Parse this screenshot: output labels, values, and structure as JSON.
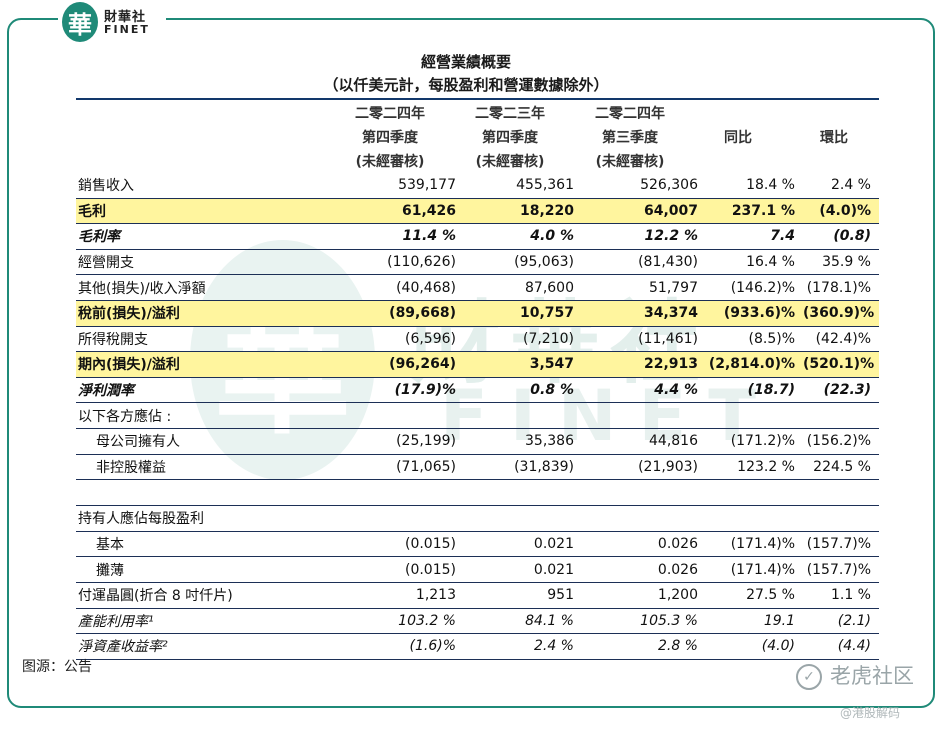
{
  "logo": {
    "mark": "華",
    "cn": "財華社",
    "en": "FINET"
  },
  "watermark": {
    "mark": "華",
    "cn": "財華社",
    "en": "FINET"
  },
  "title": {
    "line1": "經營業績概要",
    "line2": "（以仟美元計，每股盈利和營運數據除外）"
  },
  "columns": [
    {
      "l1": "二零二四年",
      "l2": "第四季度",
      "l3": "(未經審核)"
    },
    {
      "l1": "二零二三年",
      "l2": "第四季度",
      "l3": "(未經審核)"
    },
    {
      "l1": "二零二四年",
      "l2": "第三季度",
      "l3": "(未經審核)"
    },
    {
      "l1": "",
      "l2": "同比",
      "l3": ""
    },
    {
      "l1": "",
      "l2": "環比",
      "l3": ""
    }
  ],
  "rows": [
    {
      "label": "銷售收入",
      "style": "",
      "values": [
        "539,177",
        "455,361",
        "526,306",
        "18.4 %",
        "2.4 %"
      ]
    },
    {
      "label": "毛利",
      "style": "hl",
      "values": [
        "61,426",
        "18,220",
        "64,007",
        "237.1 %",
        "(4.0)%"
      ]
    },
    {
      "label": "毛利率",
      "style": "bi",
      "values": [
        "11.4 %",
        "4.0 %",
        "12.2 %",
        "7.4",
        "(0.8)"
      ]
    },
    {
      "label": "經營開支",
      "style": "",
      "values": [
        "(110,626)",
        "(95,063)",
        "(81,430)",
        "16.4 %",
        "35.9 %"
      ]
    },
    {
      "label": "其他(損失)/收入淨額",
      "style": "",
      "values": [
        "(40,468)",
        "87,600",
        "51,797",
        "(146.2)%",
        "(178.1)%"
      ]
    },
    {
      "label": "稅前(損失)/溢利",
      "style": "hl",
      "values": [
        "(89,668)",
        "10,757",
        "34,374",
        "(933.6)%",
        "(360.9)%"
      ]
    },
    {
      "label": "所得稅開支",
      "style": "",
      "values": [
        "(6,596)",
        "(7,210)",
        "(11,461)",
        "(8.5)%",
        "(42.4)%"
      ]
    },
    {
      "label": "期內(損失)/溢利",
      "style": "hl",
      "values": [
        "(96,264)",
        "3,547",
        "22,913",
        "(2,814.0)%",
        "(520.1)%"
      ]
    },
    {
      "label": "淨利潤率",
      "style": "bi",
      "values": [
        "(17.9)%",
        "0.8 %",
        "4.4 %",
        "(18.7)",
        "(22.3)"
      ]
    },
    {
      "label": "以下各方應佔 :",
      "style": "",
      "values": [
        "",
        "",
        "",
        "",
        ""
      ]
    },
    {
      "label": "母公司擁有人",
      "style": "indent",
      "values": [
        "(25,199)",
        "35,386",
        "44,816",
        "(171.2)%",
        "(156.2)%"
      ]
    },
    {
      "label": "非控股權益",
      "style": "indent",
      "values": [
        "(71,065)",
        "(31,839)",
        "(21,903)",
        "123.2 %",
        "224.5 %"
      ]
    },
    {
      "label": "",
      "style": "blank",
      "values": [
        "",
        "",
        "",
        "",
        ""
      ]
    },
    {
      "label": "持有人應佔每股盈利",
      "style": "",
      "values": [
        "",
        "",
        "",
        "",
        ""
      ]
    },
    {
      "label": "基本",
      "style": "indent",
      "values": [
        "(0.015)",
        "0.021",
        "0.026",
        "(171.4)%",
        "(157.7)%"
      ]
    },
    {
      "label": "攤薄",
      "style": "indent",
      "values": [
        "(0.015)",
        "0.021",
        "0.026",
        "(171.4)%",
        "(157.7)%"
      ]
    },
    {
      "label": "付運晶圓(折合 8 吋仟片)",
      "style": "",
      "values": [
        "1,213",
        "951",
        "1,200",
        "27.5 %",
        "1.1 %"
      ]
    },
    {
      "label": "產能利用率¹",
      "style": "it",
      "values": [
        "103.2 %",
        "84.1 %",
        "105.3 %",
        "19.1",
        "(2.1)"
      ]
    },
    {
      "label": "淨資產收益率²",
      "style": "it",
      "values": [
        "(1.6)%",
        "2.4 %",
        "2.8 %",
        "(4.0)",
        "(4.4)"
      ]
    }
  ],
  "source": "图源：公告",
  "brand": {
    "icon": "✓",
    "name": "老虎社区",
    "handle": "@港股解码"
  }
}
